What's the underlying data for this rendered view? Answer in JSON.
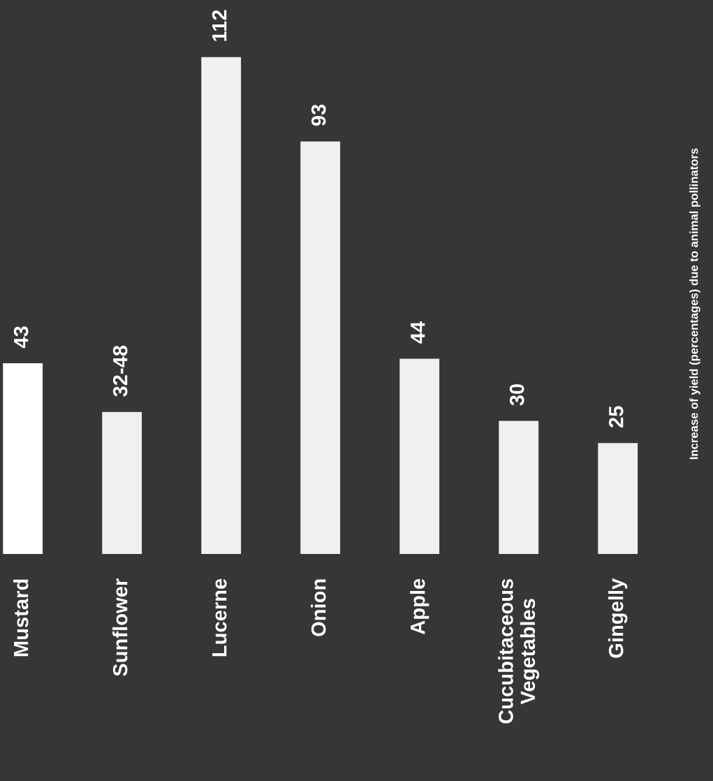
{
  "chart_data": {
    "type": "bar",
    "ylabel": "Increase of yield (percentages) due to animal pollinators",
    "categories": [
      "Mustard",
      "Sunflower",
      "Lucerne",
      "Onion",
      "Apple",
      "Cucubitaceous\nVegetables",
      "Gingelly"
    ],
    "values": [
      43,
      32,
      112,
      93,
      44,
      30,
      25
    ],
    "value_labels": [
      "43",
      "32-48",
      "112",
      "93",
      "44",
      "30",
      "25"
    ],
    "colors": [
      "#ffffff",
      "#f0f0f2",
      "#f0f0f2",
      "#f0f0f2",
      "#f0f0f2",
      "#f0f0f2",
      "#f0f0f2"
    ],
    "grid": false,
    "legend": false
  }
}
